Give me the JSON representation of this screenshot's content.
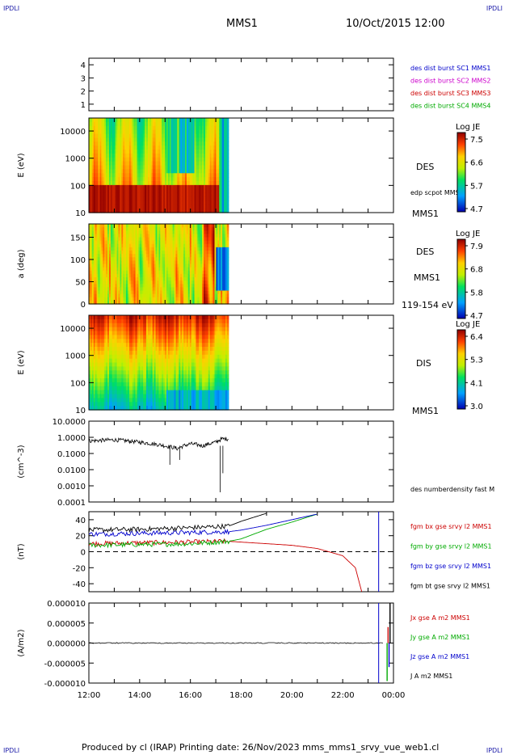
{
  "corner_mark": "IPDLI",
  "header": {
    "title": "MMS1",
    "datetime": "10/Oct/2015 12:00"
  },
  "footer": "Produced by cl (IRAP)   Printing date: 26/Nov/2023   mms_mms1_srvy_vue_web1.cl",
  "x_axis": {
    "ticks": [
      "12:00",
      "14:00",
      "16:00",
      "18:00",
      "20:00",
      "22:00",
      "00:00"
    ]
  },
  "data_end_time": "17:30",
  "panels": {
    "spacecraft": {
      "y_ticks": [
        "1",
        "2",
        "3",
        "4"
      ],
      "labels": [
        {
          "text": "des dist burst SC1 MMS1",
          "color": "#0000cc"
        },
        {
          "text": "des dist burst SC2 MMS2",
          "color": "#cc00cc"
        },
        {
          "text": "des dist burst SC3 MMS3",
          "color": "#cc0000"
        },
        {
          "text": "des dist burst SC4 MMS4",
          "color": "#00aa00"
        }
      ]
    },
    "des_energy": {
      "ylabel": "E (eV)",
      "y_ticks": [
        "10",
        "100",
        "1000",
        "10000"
      ],
      "name": "DES",
      "sub_label": "edp scpot MMS1",
      "bottom_label": "MMS1",
      "colorbar": {
        "title": "Log JE",
        "ticks": [
          "7.5",
          "6.6",
          "5.7",
          "4.7"
        ]
      }
    },
    "des_pitch": {
      "ylabel": "a (deg)",
      "y_ticks": [
        "0",
        "50",
        "100",
        "150"
      ],
      "name": "DES",
      "spacecraft": "MMS1",
      "bottom_label": "119-154 eV",
      "colorbar": {
        "title": "Log JE",
        "ticks": [
          "7.9",
          "6.8",
          "5.8",
          "4.7"
        ]
      }
    },
    "dis_energy": {
      "ylabel": "E (eV)",
      "y_ticks": [
        "10",
        "100",
        "1000",
        "10000"
      ],
      "name": "DIS",
      "bottom_label": "MMS1",
      "colorbar": {
        "title": "Log JE",
        "ticks": [
          "6.4",
          "5.3",
          "4.1",
          "3.0"
        ]
      }
    },
    "density": {
      "ylabel": "(cm^-3)",
      "y_ticks": [
        "0.0001",
        "0.0010",
        "0.0100",
        "0.1000",
        "1.0000",
        "10.0000"
      ],
      "label": "des numberdensity fast M"
    },
    "bfield": {
      "ylabel": "(nT)",
      "y_ticks": [
        "-40",
        "-20",
        "0",
        "20",
        "40"
      ],
      "labels": [
        {
          "text": "fgm bx gse srvy l2 MMS1",
          "color": "#cc0000"
        },
        {
          "text": "fgm by gse srvy l2 MMS1",
          "color": "#00aa00"
        },
        {
          "text": "fgm bz gse srvy l2 MMS1",
          "color": "#0000cc"
        },
        {
          "text": "fgm bt gse srvy l2 MMS1",
          "color": "#000000"
        }
      ]
    },
    "current": {
      "ylabel": "(A/m2)",
      "y_ticks": [
        "-0.000010",
        "-0.000005",
        "0.000000",
        "0.000005",
        "0.000010"
      ],
      "labels": [
        {
          "text": "Jx gse A m2 MMS1",
          "color": "#cc0000"
        },
        {
          "text": "Jy gse A m2 MMS1",
          "color": "#00aa00"
        },
        {
          "text": "Jz gse A m2 MMS1",
          "color": "#0000cc"
        },
        {
          "text": "J A m2 MMS1",
          "color": "#000000"
        }
      ]
    }
  },
  "chart_data": [
    {
      "type": "line",
      "name": "spacecraft",
      "ylim": [
        0.5,
        4.5
      ],
      "series": []
    },
    {
      "type": "heatmap",
      "name": "des_energy",
      "scale": "log",
      "ylim": [
        10,
        30000
      ],
      "x_range": [
        "12:00",
        "17:30"
      ],
      "clim": [
        4.7,
        7.5
      ]
    },
    {
      "type": "heatmap",
      "name": "des_pitch",
      "ylim": [
        0,
        180
      ],
      "x_range": [
        "12:00",
        "17:30"
      ],
      "clim": [
        4.7,
        7.9
      ]
    },
    {
      "type": "heatmap",
      "name": "dis_energy",
      "scale": "log",
      "ylim": [
        10,
        30000
      ],
      "x_range": [
        "12:00",
        "17:30"
      ],
      "clim": [
        3.0,
        6.4
      ]
    },
    {
      "type": "line",
      "name": "density",
      "scale": "log",
      "ylim": [
        0.0001,
        10
      ],
      "x": [
        "12:00",
        "13:00",
        "14:00",
        "15:00",
        "15:30",
        "16:00",
        "16:30",
        "17:00",
        "17:15"
      ],
      "values": [
        0.6,
        0.7,
        0.5,
        0.3,
        0.2,
        0.4,
        0.3,
        0.5,
        0.8
      ]
    },
    {
      "type": "line",
      "name": "bfield",
      "ylim": [
        -50,
        50
      ],
      "x": [
        "12:00",
        "14:00",
        "16:00",
        "17:30",
        "18:00",
        "19:00",
        "20:00",
        "21:00",
        "22:00",
        "22:30",
        "22:45"
      ],
      "series": [
        {
          "name": "fgm bx gse srvy l2 MMS1",
          "values": [
            10,
            11,
            12,
            13,
            12,
            10,
            8,
            4,
            -5,
            -20,
            -50
          ]
        },
        {
          "name": "fgm by gse srvy l2 MMS1",
          "values": [
            8,
            9,
            10,
            13,
            16,
            28,
            37,
            47,
            null,
            null,
            null
          ]
        },
        {
          "name": "fgm bz gse srvy l2 MMS1",
          "values": [
            22,
            23,
            24,
            25,
            27,
            33,
            40,
            47,
            null,
            null,
            null
          ]
        },
        {
          "name": "fgm bt gse srvy l2 MMS1",
          "values": [
            27,
            28,
            30,
            32,
            38,
            48,
            null,
            null,
            null,
            null,
            null
          ]
        }
      ]
    },
    {
      "type": "line",
      "name": "current",
      "ylim": [
        -1e-05,
        1e-05
      ],
      "x": [
        "12:00",
        "16:00",
        "20:00",
        "23:30",
        "23:45",
        "00:00"
      ],
      "series": [
        {
          "name": "J A m2 MMS1",
          "values": [
            0,
            0,
            0,
            0,
            1e-05,
            0
          ]
        }
      ]
    }
  ]
}
